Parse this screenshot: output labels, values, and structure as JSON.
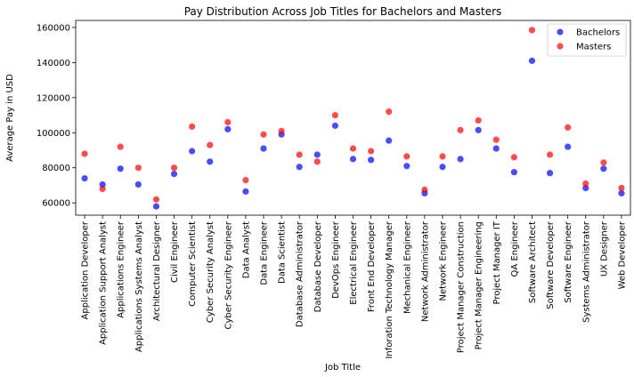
{
  "chart_data": {
    "type": "scatter",
    "title": "Pay Distribution Across Job Titles for Bachelors and Masters",
    "xlabel": "Job Title",
    "ylabel": "Average Pay in USD",
    "ylim": [
      53000,
      164000
    ],
    "yticks": [
      60000,
      80000,
      100000,
      120000,
      140000,
      160000
    ],
    "grid": false,
    "legend_position": "top-right",
    "categories": [
      "Application Developer",
      "Application Support Analyst",
      "Applications Engineer",
      "Applications Systems Analyst",
      "Architectural Designer",
      "Civil Engineer",
      "Computer Scientist",
      "Cyber Security Analyst",
      "Cyber Security Engineer",
      "Data Analyst",
      "Data Engineer",
      "Data Scientist",
      "Database Administrator",
      "Database Developer",
      "DevOps Engineer",
      "Electrical Engineer",
      "Front End Developer",
      "Inforation Technology Manager",
      "Mechanical Engineer",
      "Network Administrator",
      "Network Engineer",
      "Project Manager Construction",
      "Project Manager Engineering",
      "Project Manager IT",
      "QA Engineer",
      "Software Architect",
      "Software Developer",
      "Software Engineer",
      "Systems Administrator",
      "UX Designer",
      "Web Developer"
    ],
    "series": [
      {
        "name": "Bachelors",
        "color": "#0000ff",
        "values": [
          74000,
          70500,
          79500,
          70500,
          58000,
          76500,
          89500,
          83500,
          102000,
          66500,
          91000,
          99000,
          80500,
          87500,
          104000,
          85000,
          84500,
          95500,
          81000,
          65500,
          80500,
          85000,
          101500,
          91000,
          77500,
          141000,
          77000,
          92000,
          68500,
          79500,
          65500
        ]
      },
      {
        "name": "Masters",
        "color": "#ff0000",
        "values": [
          88000,
          68000,
          92000,
          80000,
          62000,
          80000,
          103500,
          93000,
          106000,
          73000,
          99000,
          101000,
          87500,
          83500,
          110000,
          91000,
          89500,
          112000,
          86500,
          67500,
          86500,
          101500,
          107000,
          96000,
          86000,
          158500,
          87500,
          103000,
          71000,
          83000,
          68500
        ]
      }
    ]
  }
}
